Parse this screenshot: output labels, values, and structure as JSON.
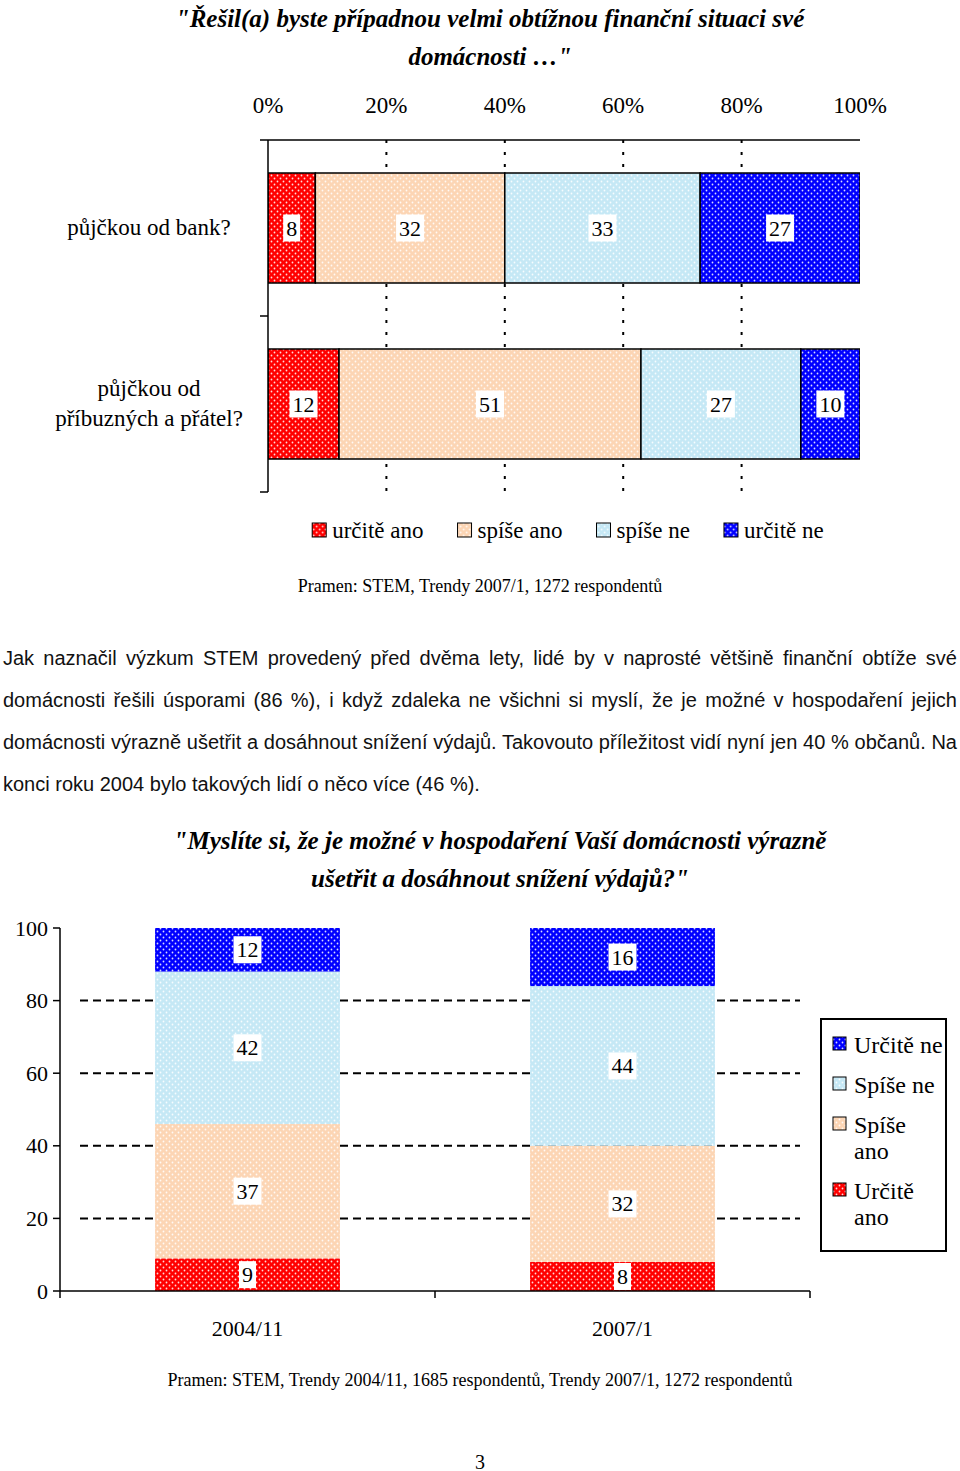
{
  "chart_data": [
    {
      "type": "bar",
      "title": "\"Řešil(a) byste případnou velmi obtížnou finanční situaci své domácnosti …\"",
      "categories": [
        "půjčkou od bank?",
        "půjčkou od příbuzných a přátel?"
      ],
      "series": [
        {
          "name": "určitě ano",
          "color": "#ff0000",
          "values": [
            8,
            12
          ]
        },
        {
          "name": "spíše ano",
          "color": "#fcd5b4",
          "values": [
            32,
            51
          ]
        },
        {
          "name": "spíše ne",
          "color": "#c5e8f5",
          "values": [
            33,
            27
          ]
        },
        {
          "name": "určitě ne",
          "color": "#0000ff",
          "values": [
            27,
            10
          ]
        }
      ],
      "xlim": [
        0,
        100
      ],
      "xticks": [
        {
          "value": 0,
          "label": "0%"
        },
        {
          "value": 20,
          "label": "20%"
        },
        {
          "value": 40,
          "label": "40%"
        },
        {
          "value": 60,
          "label": "60%"
        },
        {
          "value": 80,
          "label": "80%"
        },
        {
          "value": 100,
          "label": "100%"
        }
      ],
      "orientation": "horizontal",
      "stacked": true,
      "data_labels": true,
      "grid": true,
      "legend": "bottom",
      "annotations": [
        "Pramen: STEM, Trendy 2007/1, 1272 respondentů"
      ]
    },
    {
      "type": "bar",
      "title": "\"Myslíte si, že je možné v hospodaření Vaší domácnosti výrazně ušetřit a dosáhnout snížení výdajů?\"",
      "categories": [
        "2004/11",
        "2007/1"
      ],
      "series": [
        {
          "name": "Určitě ano",
          "color": "#ff0000",
          "values": [
            9,
            8
          ]
        },
        {
          "name": "Spíše ano",
          "color": "#fcd5b4",
          "values": [
            37,
            32
          ]
        },
        {
          "name": "Spíše ne",
          "color": "#c5e8f5",
          "values": [
            42,
            44
          ]
        },
        {
          "name": "Určitě ne",
          "color": "#0000ff",
          "values": [
            12,
            16
          ]
        }
      ],
      "ylim": [
        0,
        100
      ],
      "yticks": [
        0,
        20,
        40,
        60,
        80,
        100
      ],
      "stacked": true,
      "data_labels": true,
      "grid": true,
      "legend": "right",
      "annotations": [
        "Pramen: STEM, Trendy 2004/11, 1685 respondentů, Trendy 2007/1, 1272 respondentů"
      ]
    }
  ],
  "paragraph": "Jak naznačil výzkum STEM provedený před dvěma lety, lidé by v naprosté většině finanční obtíže své domácnosti řešili úsporami (86 %), i když zdaleka ne všichni si myslí, že je možné v hospodaření jejich domácnosti výrazně ušetřit a dosáhnout snížení výdajů. Takovouto příležitost vidí nyní jen 40 % občanů. Na konci roku 2004 bylo takových lidí o něco více (46 %).",
  "page_number": "3"
}
